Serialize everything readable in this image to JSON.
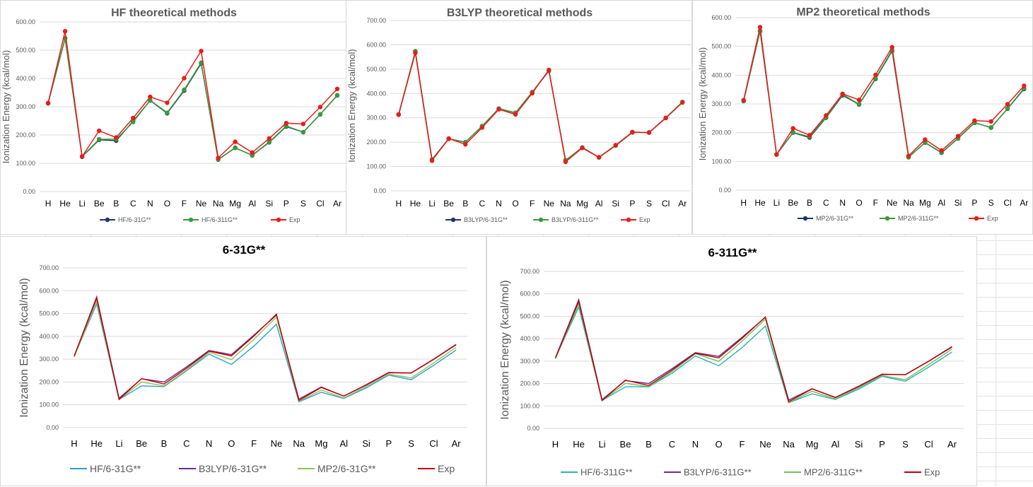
{
  "categories": [
    "H",
    "He",
    "Li",
    "Be",
    "B",
    "C",
    "N",
    "O",
    "F",
    "Ne",
    "Na",
    "Mg",
    "Al",
    "Si",
    "P",
    "S",
    "Cl",
    "Ar"
  ],
  "chart_data": [
    {
      "type": "line",
      "title": "HF theoretical methods",
      "ylabel": "Ionization Energy (kcal/mol)",
      "ylim": [
        0,
        600
      ],
      "yticks": [
        "0.00",
        "100.00",
        "200.00",
        "300.00",
        "400.00",
        "500.00",
        "600.00"
      ],
      "markers": true,
      "series": [
        {
          "name": "HF/6-31G**",
          "color": "#1f3864",
          "values": [
            312,
            542,
            123,
            183,
            180,
            249,
            322,
            277,
            357,
            453,
            113,
            155,
            128,
            174,
            230,
            210,
            273,
            340
          ]
        },
        {
          "name": "HF/6-311G**",
          "color": "#3a9a3a",
          "values": [
            313,
            541,
            124,
            185,
            185,
            246,
            323,
            279,
            360,
            456,
            114,
            154,
            129,
            175,
            232,
            210,
            273,
            341
          ]
        },
        {
          "name": "Exp",
          "color": "#e81c1c",
          "values": [
            313,
            567,
            124,
            215,
            191,
            260,
            335,
            314,
            401,
            497,
            119,
            176,
            138,
            188,
            242,
            239,
            299,
            363
          ]
        }
      ]
    },
    {
      "type": "line",
      "title": "B3LYP theoretical methods",
      "ylabel": "Ionization Energy (kcal/mol)",
      "ylim": [
        0,
        700
      ],
      "yticks": [
        "0.00",
        "100.00",
        "200.00",
        "300.00",
        "400.00",
        "500.00",
        "600.00",
        "700.00"
      ],
      "markers": true,
      "series": [
        {
          "name": "B3LYP/6-31G**",
          "color": "#1f3864",
          "values": [
            313,
            573,
            129,
            214,
            200,
            266,
            338,
            320,
            405,
            493,
            125,
            178,
            138,
            186,
            240,
            240,
            300,
            365
          ]
        },
        {
          "name": "B3LYP/6-311G**",
          "color": "#3a9a3a",
          "values": [
            315,
            574,
            128,
            213,
            200,
            266,
            338,
            321,
            406,
            495,
            126,
            177,
            137,
            186,
            240,
            240,
            300,
            365
          ]
        },
        {
          "name": "Exp",
          "color": "#e81c1c",
          "values": [
            313,
            567,
            124,
            215,
            191,
            260,
            335,
            314,
            401,
            497,
            119,
            176,
            138,
            188,
            242,
            239,
            299,
            363
          ]
        }
      ]
    },
    {
      "type": "line",
      "title": "MP2 theoretical methods",
      "ylabel": "Ionization Energy (kcal/mol)",
      "ylim": [
        0,
        600
      ],
      "yticks": [
        "0.00",
        "100.00",
        "200.00",
        "300.00",
        "400.00",
        "500.00",
        "600.00"
      ],
      "markers": true,
      "series": [
        {
          "name": "MP2/6-31G**",
          "color": "#1f3864",
          "values": [
            310,
            553,
            124,
            200,
            183,
            252,
            330,
            298,
            387,
            484,
            115,
            165,
            130,
            180,
            234,
            218,
            283,
            352
          ]
        },
        {
          "name": "MP2/6-311G**",
          "color": "#3a9a3a",
          "values": [
            311,
            555,
            124,
            201,
            186,
            254,
            333,
            299,
            389,
            487,
            114,
            166,
            131,
            181,
            235,
            217,
            284,
            354
          ]
        },
        {
          "name": "Exp",
          "color": "#e81c1c",
          "values": [
            313,
            567,
            124,
            215,
            191,
            260,
            335,
            314,
            401,
            497,
            119,
            176,
            138,
            188,
            242,
            239,
            299,
            363
          ]
        }
      ]
    },
    {
      "type": "line",
      "title": "6-31G**",
      "ylabel": "Ionization Energy (kcal/mol)",
      "ylim": [
        0,
        700
      ],
      "yticks": [
        "0.00",
        "100.00",
        "200.00",
        "300.00",
        "400.00",
        "500.00",
        "600.00",
        "700.00"
      ],
      "markers": false,
      "series": [
        {
          "name": "HF/6-31G**",
          "color": "#2ea0d6",
          "values": [
            312,
            542,
            123,
            183,
            180,
            249,
            322,
            277,
            357,
            453,
            113,
            155,
            128,
            174,
            230,
            210,
            273,
            340
          ]
        },
        {
          "name": "B3LYP/6-31G**",
          "color": "#6a2c8c",
          "values": [
            313,
            573,
            129,
            214,
            200,
            266,
            338,
            320,
            405,
            493,
            125,
            178,
            138,
            186,
            240,
            240,
            300,
            365
          ]
        },
        {
          "name": "MP2/6-31G**",
          "color": "#92c353",
          "values": [
            310,
            553,
            124,
            200,
            183,
            252,
            330,
            298,
            387,
            484,
            115,
            165,
            130,
            180,
            234,
            218,
            283,
            352
          ]
        },
        {
          "name": "Exp",
          "color": "#c00000",
          "values": [
            313,
            567,
            124,
            215,
            191,
            260,
            335,
            314,
            401,
            497,
            119,
            176,
            138,
            188,
            242,
            239,
            299,
            363
          ]
        }
      ]
    },
    {
      "type": "line",
      "title": "6-311G**",
      "ylabel": "Ionization Energy (kcal/mol)",
      "ylim": [
        0,
        700
      ],
      "yticks": [
        "0.00",
        "100.00",
        "200.00",
        "300.00",
        "400.00",
        "500.00",
        "600.00",
        "700.00"
      ],
      "markers": false,
      "series": [
        {
          "name": "HF/6-311G**",
          "color": "#2ab3b3",
          "values": [
            313,
            541,
            124,
            185,
            185,
            246,
            323,
            279,
            360,
            456,
            114,
            154,
            129,
            175,
            232,
            210,
            273,
            341
          ]
        },
        {
          "name": "B3LYP/6-311G**",
          "color": "#6a2c8c",
          "values": [
            315,
            574,
            128,
            213,
            200,
            266,
            338,
            321,
            406,
            495,
            126,
            177,
            137,
            186,
            240,
            240,
            300,
            365
          ]
        },
        {
          "name": "MP2/6-311G**",
          "color": "#6fbf5a",
          "values": [
            311,
            555,
            124,
            201,
            186,
            254,
            333,
            299,
            389,
            487,
            114,
            166,
            131,
            181,
            235,
            217,
            284,
            354
          ]
        },
        {
          "name": "Exp",
          "color": "#c00000",
          "values": [
            313,
            567,
            124,
            215,
            191,
            260,
            335,
            314,
            401,
            497,
            119,
            176,
            138,
            188,
            242,
            239,
            299,
            363
          ]
        }
      ]
    }
  ]
}
